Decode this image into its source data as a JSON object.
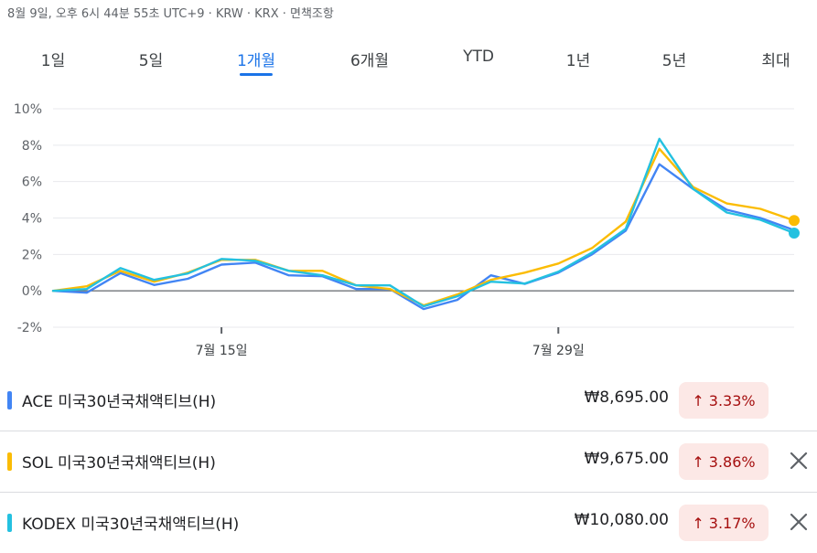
{
  "header": {
    "timestamp": "8월 9일, 오후 6시 44분 55초 UTC+9 · KRW · KRX · 면책조항"
  },
  "tabs": [
    {
      "label": "1일",
      "active": false
    },
    {
      "label": "5일",
      "active": false
    },
    {
      "label": "1개월",
      "active": true
    },
    {
      "label": "6개월",
      "active": false
    },
    {
      "label": "YTD",
      "active": false
    },
    {
      "label": "1년",
      "active": false
    },
    {
      "label": "5년",
      "active": false
    },
    {
      "label": "최대",
      "active": false
    }
  ],
  "chart_data": {
    "type": "line",
    "title": "",
    "xlabel": "",
    "ylabel": "",
    "ylim": [
      -2,
      10
    ],
    "yticks": [
      {
        "value": 10,
        "label": "10%"
      },
      {
        "value": 8,
        "label": "8%"
      },
      {
        "value": 6,
        "label": "6%"
      },
      {
        "value": 4,
        "label": "4%"
      },
      {
        "value": 2,
        "label": "2%"
      },
      {
        "value": 0,
        "label": "0%"
      },
      {
        "value": -2,
        "label": "-2%"
      }
    ],
    "xticks": [
      {
        "index": 5,
        "label": "7월 15일"
      },
      {
        "index": 15,
        "label": "7월 29일"
      }
    ],
    "baseline": 0,
    "grid": true,
    "series": [
      {
        "name": "ACE 미국30년국채액티브(H)",
        "color": "#4285f4",
        "values": [
          0,
          -0.1,
          0.97,
          0.32,
          0.66,
          1.44,
          1.55,
          0.85,
          0.8,
          0.1,
          0.1,
          -1.0,
          -0.5,
          0.85,
          0.38,
          1.0,
          2.0,
          3.3,
          6.95,
          5.6,
          4.45,
          4.0,
          3.33
        ]
      },
      {
        "name": "SOL 미국30년국채액티브(H)",
        "color": "#fbbc04",
        "values": [
          0,
          0.25,
          1.1,
          0.5,
          1.0,
          1.7,
          1.7,
          1.1,
          1.1,
          0.3,
          0.1,
          -0.8,
          -0.2,
          0.6,
          1.0,
          1.5,
          2.35,
          3.8,
          7.8,
          5.7,
          4.8,
          4.5,
          3.86
        ]
      },
      {
        "name": "KODEX 미국30년국채액티브(H)",
        "color": "#24c1e0",
        "values": [
          0,
          0.1,
          1.25,
          0.6,
          0.95,
          1.75,
          1.65,
          1.1,
          0.85,
          0.3,
          0.3,
          -0.85,
          -0.3,
          0.5,
          0.4,
          1.05,
          2.1,
          3.4,
          8.35,
          5.6,
          4.3,
          3.9,
          3.17
        ]
      }
    ],
    "legend": "none"
  },
  "holdings": [
    {
      "name": "ACE 미국30년국채액티브(H)",
      "color": "#4285f4",
      "price": "₩8,695.00",
      "change": "3.33%",
      "change_direction": "up",
      "removable": false
    },
    {
      "name": "SOL 미국30년국채액티브(H)",
      "color": "#fbbc04",
      "price": "₩9,675.00",
      "change": "3.86%",
      "change_direction": "up",
      "removable": true
    },
    {
      "name": "KODEX 미국30년국채액티브(H)",
      "color": "#24c1e0",
      "price": "₩10,080.00",
      "change": "3.17%",
      "change_direction": "up",
      "removable": true
    }
  ],
  "icons": {
    "change_up": "arrow-up-icon",
    "remove": "close-icon"
  }
}
